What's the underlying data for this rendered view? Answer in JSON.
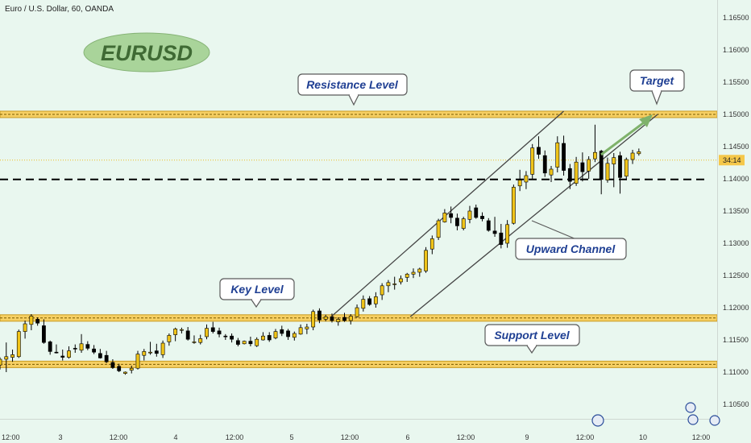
{
  "header": {
    "symbol_line": "Euro / U.S. Dollar, 60, OANDA"
  },
  "badge": {
    "text": "EURUSD"
  },
  "price_axis": {
    "ticks": [
      "1.16500",
      "1.16000",
      "1.15500",
      "1.15000",
      "1.14500",
      "1.14000",
      "1.13500",
      "1.13000",
      "1.12500",
      "1.12000",
      "1.11500",
      "1.11000",
      "1.10500"
    ],
    "countdown": "34:14"
  },
  "time_axis": {
    "ticks": [
      "12:00",
      "3",
      "12:00",
      "4",
      "12:00",
      "5",
      "12:00",
      "6",
      "12:00",
      "9",
      "12:00",
      "10",
      "12:00"
    ]
  },
  "annotations": {
    "resistance": "Resistance Level",
    "target": "Target",
    "key_level": "Key Level",
    "support": "Support Level",
    "channel": "Upward Channel"
  },
  "colors": {
    "background": "#e9f7ef",
    "bull_candle": "#f0c419",
    "bear_candle": "#000000",
    "zone_fill": "#f6cf63",
    "zone_border": "#c89a21",
    "callout_text": "#1f3f93",
    "badge_fill": "#a9d49a",
    "arrow": "#7fb26b"
  },
  "chart_data": {
    "type": "candlestick",
    "y_range": [
      1.10275,
      1.16775
    ],
    "x_range": [
      0,
      229
    ],
    "levels": {
      "resistance": 1.15,
      "key_level": 1.1184,
      "support": 1.1112,
      "dashed": 1.1399,
      "current_price": 1.1429
    },
    "channel": {
      "upper": [
        [
          106,
          1.1187
        ],
        [
          180,
          1.1505
        ]
      ],
      "lower": [
        [
          131,
          1.1186
        ],
        [
          210,
          1.15
        ]
      ]
    },
    "candles": [
      [
        0,
        1.1111,
        1.1123,
        1.1104,
        1.112
      ],
      [
        2,
        1.112,
        1.1146,
        1.11,
        1.1124
      ],
      [
        4,
        1.1123,
        1.1135,
        1.1116,
        1.1127
      ],
      [
        6,
        1.1124,
        1.1166,
        1.1122,
        1.1163
      ],
      [
        8,
        1.1163,
        1.118,
        1.1152,
        1.1175
      ],
      [
        10,
        1.1174,
        1.119,
        1.1165,
        1.1187
      ],
      [
        12,
        1.1182,
        1.1185,
        1.1172,
        1.1176
      ],
      [
        14,
        1.1172,
        1.1182,
        1.1144,
        1.1146
      ],
      [
        16,
        1.1147,
        1.1149,
        1.1127,
        1.1132
      ],
      [
        18,
        1.1131,
        1.1143,
        1.1129,
        1.113
      ],
      [
        20,
        1.1125,
        1.1135,
        1.1118,
        1.1123
      ],
      [
        22,
        1.1123,
        1.114,
        1.1121,
        1.1133
      ],
      [
        24,
        1.1137,
        1.1143,
        1.113,
        1.1136
      ],
      [
        26,
        1.1134,
        1.1159,
        1.113,
        1.1144
      ],
      [
        28,
        1.1143,
        1.1148,
        1.1134,
        1.1137
      ],
      [
        30,
        1.1136,
        1.1142,
        1.1128,
        1.1131
      ],
      [
        32,
        1.1129,
        1.1136,
        1.1121,
        1.1122
      ],
      [
        34,
        1.1126,
        1.1133,
        1.1114,
        1.1116
      ],
      [
        36,
        1.1115,
        1.112,
        1.1105,
        1.1107
      ],
      [
        38,
        1.1109,
        1.1113,
        1.11,
        1.1102
      ],
      [
        40,
        1.1098,
        1.1101,
        1.1096,
        1.11
      ],
      [
        42,
        1.1103,
        1.111,
        1.1098,
        1.1106
      ],
      [
        44,
        1.1106,
        1.1133,
        1.1104,
        1.1128
      ],
      [
        46,
        1.1126,
        1.1136,
        1.1118,
        1.1132
      ],
      [
        48,
        1.113,
        1.1147,
        1.1127,
        1.1131
      ],
      [
        50,
        1.1133,
        1.1144,
        1.1124,
        1.1129
      ],
      [
        52,
        1.1127,
        1.1149,
        1.1122,
        1.1145
      ],
      [
        54,
        1.1147,
        1.116,
        1.1141,
        1.1157
      ],
      [
        56,
        1.1158,
        1.1169,
        1.1148,
        1.1167
      ],
      [
        58,
        1.1165,
        1.1169,
        1.116,
        1.1166
      ],
      [
        60,
        1.1164,
        1.117,
        1.1149,
        1.1151
      ],
      [
        62,
        1.1147,
        1.1157,
        1.1144,
        1.1147
      ],
      [
        64,
        1.1146,
        1.1158,
        1.1143,
        1.1152
      ],
      [
        66,
        1.1155,
        1.1174,
        1.1151,
        1.1168
      ],
      [
        68,
        1.1169,
        1.1178,
        1.116,
        1.1163
      ],
      [
        70,
        1.1164,
        1.1169,
        1.1154,
        1.1159
      ],
      [
        72,
        1.1156,
        1.1159,
        1.115,
        1.1155
      ],
      [
        74,
        1.1156,
        1.116,
        1.1146,
        1.1151
      ],
      [
        76,
        1.1149,
        1.1153,
        1.114,
        1.1143
      ],
      [
        78,
        1.1144,
        1.1149,
        1.1143,
        1.1148
      ],
      [
        80,
        1.1148,
        1.1155,
        1.114,
        1.1144
      ],
      [
        82,
        1.1141,
        1.1154,
        1.1139,
        1.1151
      ],
      [
        84,
        1.115,
        1.1162,
        1.1149,
        1.1156
      ],
      [
        86,
        1.1157,
        1.1162,
        1.1147,
        1.115
      ],
      [
        88,
        1.1153,
        1.1167,
        1.1151,
        1.1163
      ],
      [
        90,
        1.1166,
        1.1172,
        1.1156,
        1.116
      ],
      [
        92,
        1.1164,
        1.1167,
        1.115,
        1.1155
      ],
      [
        94,
        1.1154,
        1.1163,
        1.1149,
        1.116
      ],
      [
        96,
        1.1159,
        1.1174,
        1.1158,
        1.1169
      ],
      [
        98,
        1.1167,
        1.1175,
        1.1159,
        1.117
      ],
      [
        100,
        1.117,
        1.1197,
        1.1165,
        1.1194
      ],
      [
        102,
        1.1195,
        1.1199,
        1.1176,
        1.1181
      ],
      [
        104,
        1.1182,
        1.1189,
        1.1179,
        1.1186
      ],
      [
        106,
        1.1186,
        1.1191,
        1.1177,
        1.118
      ],
      [
        108,
        1.1178,
        1.1185,
        1.1172,
        1.1182
      ],
      [
        110,
        1.1185,
        1.1192,
        1.1178,
        1.118
      ],
      [
        112,
        1.118,
        1.119,
        1.1174,
        1.1187
      ],
      [
        114,
        1.1186,
        1.1205,
        1.1185,
        1.12
      ],
      [
        116,
        1.1199,
        1.1219,
        1.1194,
        1.1213
      ],
      [
        118,
        1.1214,
        1.1218,
        1.1203,
        1.1205
      ],
      [
        120,
        1.1206,
        1.1224,
        1.12,
        1.1217
      ],
      [
        122,
        1.122,
        1.1238,
        1.1212,
        1.1234
      ],
      [
        124,
        1.1234,
        1.1243,
        1.1224,
        1.1239
      ],
      [
        126,
        1.1236,
        1.1248,
        1.1228,
        1.1237
      ],
      [
        128,
        1.124,
        1.125,
        1.1236,
        1.1245
      ],
      [
        130,
        1.1247,
        1.1254,
        1.124,
        1.1252
      ],
      [
        132,
        1.1252,
        1.1261,
        1.1246,
        1.1255
      ],
      [
        134,
        1.1255,
        1.1262,
        1.1248,
        1.126
      ],
      [
        136,
        1.1257,
        1.1294,
        1.1254,
        1.1289
      ],
      [
        138,
        1.1291,
        1.1312,
        1.1283,
        1.1307
      ],
      [
        140,
        1.1309,
        1.1338,
        1.1305,
        1.1335
      ],
      [
        142,
        1.1333,
        1.1353,
        1.1332,
        1.1347
      ],
      [
        144,
        1.1346,
        1.1357,
        1.1331,
        1.134
      ],
      [
        146,
        1.1339,
        1.1346,
        1.132,
        1.1327
      ],
      [
        148,
        1.1323,
        1.1341,
        1.132,
        1.1338
      ],
      [
        150,
        1.1337,
        1.1358,
        1.1331,
        1.135
      ],
      [
        152,
        1.1355,
        1.136,
        1.1338,
        1.134
      ],
      [
        154,
        1.1342,
        1.1348,
        1.1334,
        1.1338
      ],
      [
        156,
        1.1335,
        1.1339,
        1.1318,
        1.132
      ],
      [
        158,
        1.1319,
        1.1341,
        1.131,
        1.1315
      ],
      [
        160,
        1.1316,
        1.133,
        1.1292,
        1.1298
      ],
      [
        162,
        1.13,
        1.1336,
        1.1293,
        1.1329
      ],
      [
        164,
        1.1331,
        1.1391,
        1.1329,
        1.1387
      ],
      [
        166,
        1.1389,
        1.1414,
        1.1381,
        1.1398
      ],
      [
        168,
        1.1395,
        1.1412,
        1.1384,
        1.1405
      ],
      [
        170,
        1.1407,
        1.1454,
        1.14,
        1.1448
      ],
      [
        172,
        1.1449,
        1.1466,
        1.1431,
        1.1438
      ],
      [
        174,
        1.1436,
        1.1444,
        1.1403,
        1.1409
      ],
      [
        176,
        1.1406,
        1.142,
        1.1395,
        1.1415
      ],
      [
        178,
        1.1418,
        1.1466,
        1.141,
        1.1456
      ],
      [
        180,
        1.1455,
        1.1467,
        1.1405,
        1.1413
      ],
      [
        182,
        1.1416,
        1.1423,
        1.1384,
        1.1396
      ],
      [
        184,
        1.1393,
        1.1434,
        1.1389,
        1.1426
      ],
      [
        186,
        1.1425,
        1.1441,
        1.1396,
        1.1411
      ],
      [
        188,
        1.1412,
        1.1435,
        1.14,
        1.143
      ],
      [
        190,
        1.1431,
        1.1484,
        1.1426,
        1.1441
      ],
      [
        192,
        1.1443,
        1.1445,
        1.1376,
        1.1399
      ],
      [
        194,
        1.1398,
        1.1433,
        1.1394,
        1.1424
      ],
      [
        196,
        1.1423,
        1.144,
        1.1387,
        1.1433
      ],
      [
        198,
        1.1436,
        1.1442,
        1.1377,
        1.1402
      ],
      [
        200,
        1.1404,
        1.1433,
        1.1398,
        1.143
      ],
      [
        202,
        1.143,
        1.1445,
        1.1423,
        1.144
      ],
      [
        204,
        1.1439,
        1.1447,
        1.1436,
        1.1442
      ]
    ]
  }
}
